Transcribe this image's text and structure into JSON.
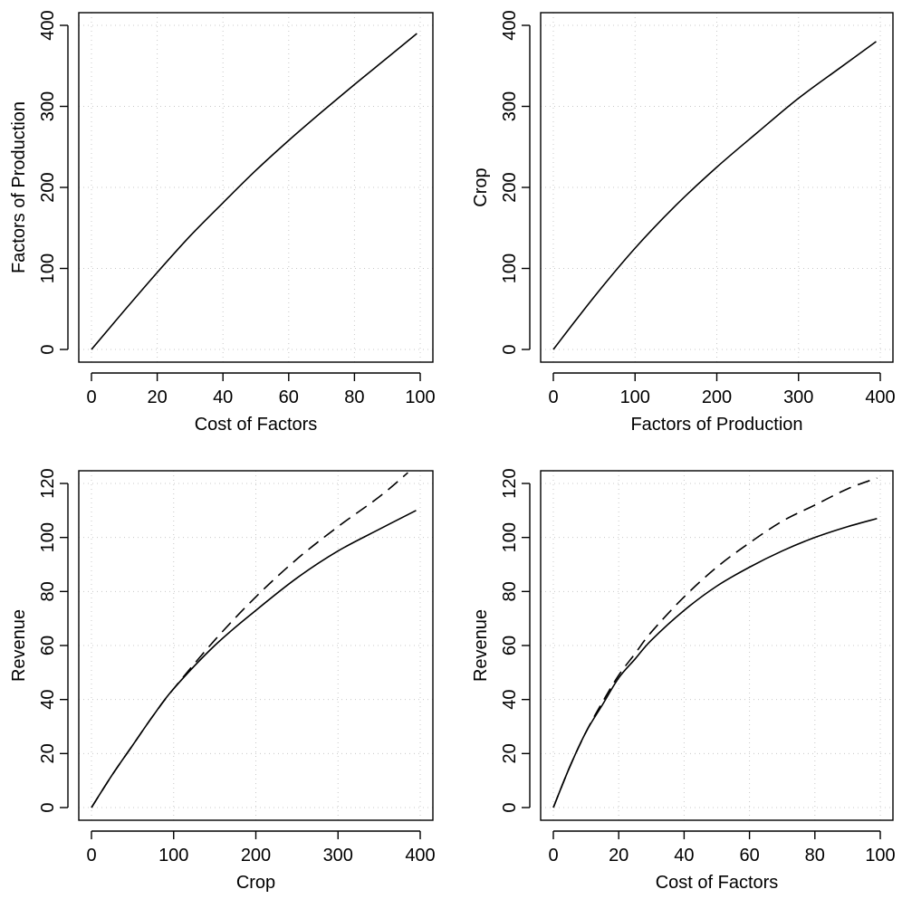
{
  "chart_data": [
    {
      "type": "line",
      "title": "",
      "xlabel": "Cost of Factors",
      "ylabel": "Factors of Production",
      "xlim": [
        0,
        100
      ],
      "ylim": [
        0,
        400
      ],
      "xticks": [
        0,
        20,
        40,
        60,
        80,
        100
      ],
      "yticks": [
        0,
        100,
        200,
        300,
        400
      ],
      "grid": true,
      "series": [
        {
          "style": "solid",
          "x": [
            0,
            10,
            20,
            30,
            40,
            50,
            60,
            70,
            80,
            90,
            99
          ],
          "y": [
            0,
            48,
            95,
            140,
            181,
            221,
            258,
            293,
            327,
            360,
            390
          ]
        }
      ]
    },
    {
      "type": "line",
      "title": "",
      "xlabel": "Factors of Production",
      "ylabel": "Crop",
      "xlim": [
        0,
        400
      ],
      "ylim": [
        0,
        400
      ],
      "xticks": [
        0,
        100,
        200,
        300,
        400
      ],
      "yticks": [
        0,
        100,
        200,
        300,
        400
      ],
      "grid": true,
      "series": [
        {
          "style": "solid",
          "x": [
            0,
            50,
            100,
            150,
            200,
            250,
            300,
            350,
            395
          ],
          "y": [
            0,
            65,
            125,
            178,
            225,
            268,
            310,
            347,
            380
          ]
        }
      ]
    },
    {
      "type": "line",
      "title": "",
      "xlabel": "Crop",
      "ylabel": "Revenue",
      "xlim": [
        0,
        400
      ],
      "ylim": [
        0,
        120
      ],
      "xticks": [
        0,
        100,
        200,
        300,
        400
      ],
      "yticks": [
        0,
        20,
        40,
        60,
        80,
        100,
        120
      ],
      "grid": true,
      "series": [
        {
          "style": "solid",
          "x": [
            0,
            25,
            50,
            75,
            100,
            150,
            200,
            250,
            300,
            350,
            395
          ],
          "y": [
            0,
            12,
            23,
            34,
            44,
            60,
            73,
            85,
            95,
            103,
            110
          ]
        },
        {
          "style": "dashed",
          "x": [
            0,
            25,
            50,
            75,
            100,
            150,
            200,
            250,
            300,
            350,
            385
          ],
          "y": [
            0,
            12,
            23,
            34,
            44,
            62,
            78,
            92,
            104,
            115,
            124
          ]
        }
      ]
    },
    {
      "type": "line",
      "title": "",
      "xlabel": "Cost of Factors",
      "ylabel": "Revenue",
      "xlim": [
        0,
        100
      ],
      "ylim": [
        0,
        120
      ],
      "xticks": [
        0,
        20,
        40,
        60,
        80,
        100
      ],
      "yticks": [
        0,
        20,
        40,
        60,
        80,
        100,
        120
      ],
      "grid": true,
      "series": [
        {
          "style": "solid",
          "x": [
            0,
            5,
            10,
            15,
            20,
            25,
            30,
            40,
            50,
            60,
            70,
            80,
            90,
            99
          ],
          "y": [
            0,
            15,
            28,
            38,
            48,
            55,
            62,
            73,
            82,
            89,
            95,
            100,
            104,
            107
          ]
        },
        {
          "style": "dashed",
          "x": [
            0,
            5,
            10,
            15,
            20,
            25,
            30,
            40,
            50,
            60,
            70,
            80,
            90,
            99
          ],
          "y": [
            0,
            15,
            28,
            39,
            49,
            57,
            65,
            78,
            89,
            98,
            106,
            112,
            118,
            122
          ]
        }
      ]
    }
  ]
}
